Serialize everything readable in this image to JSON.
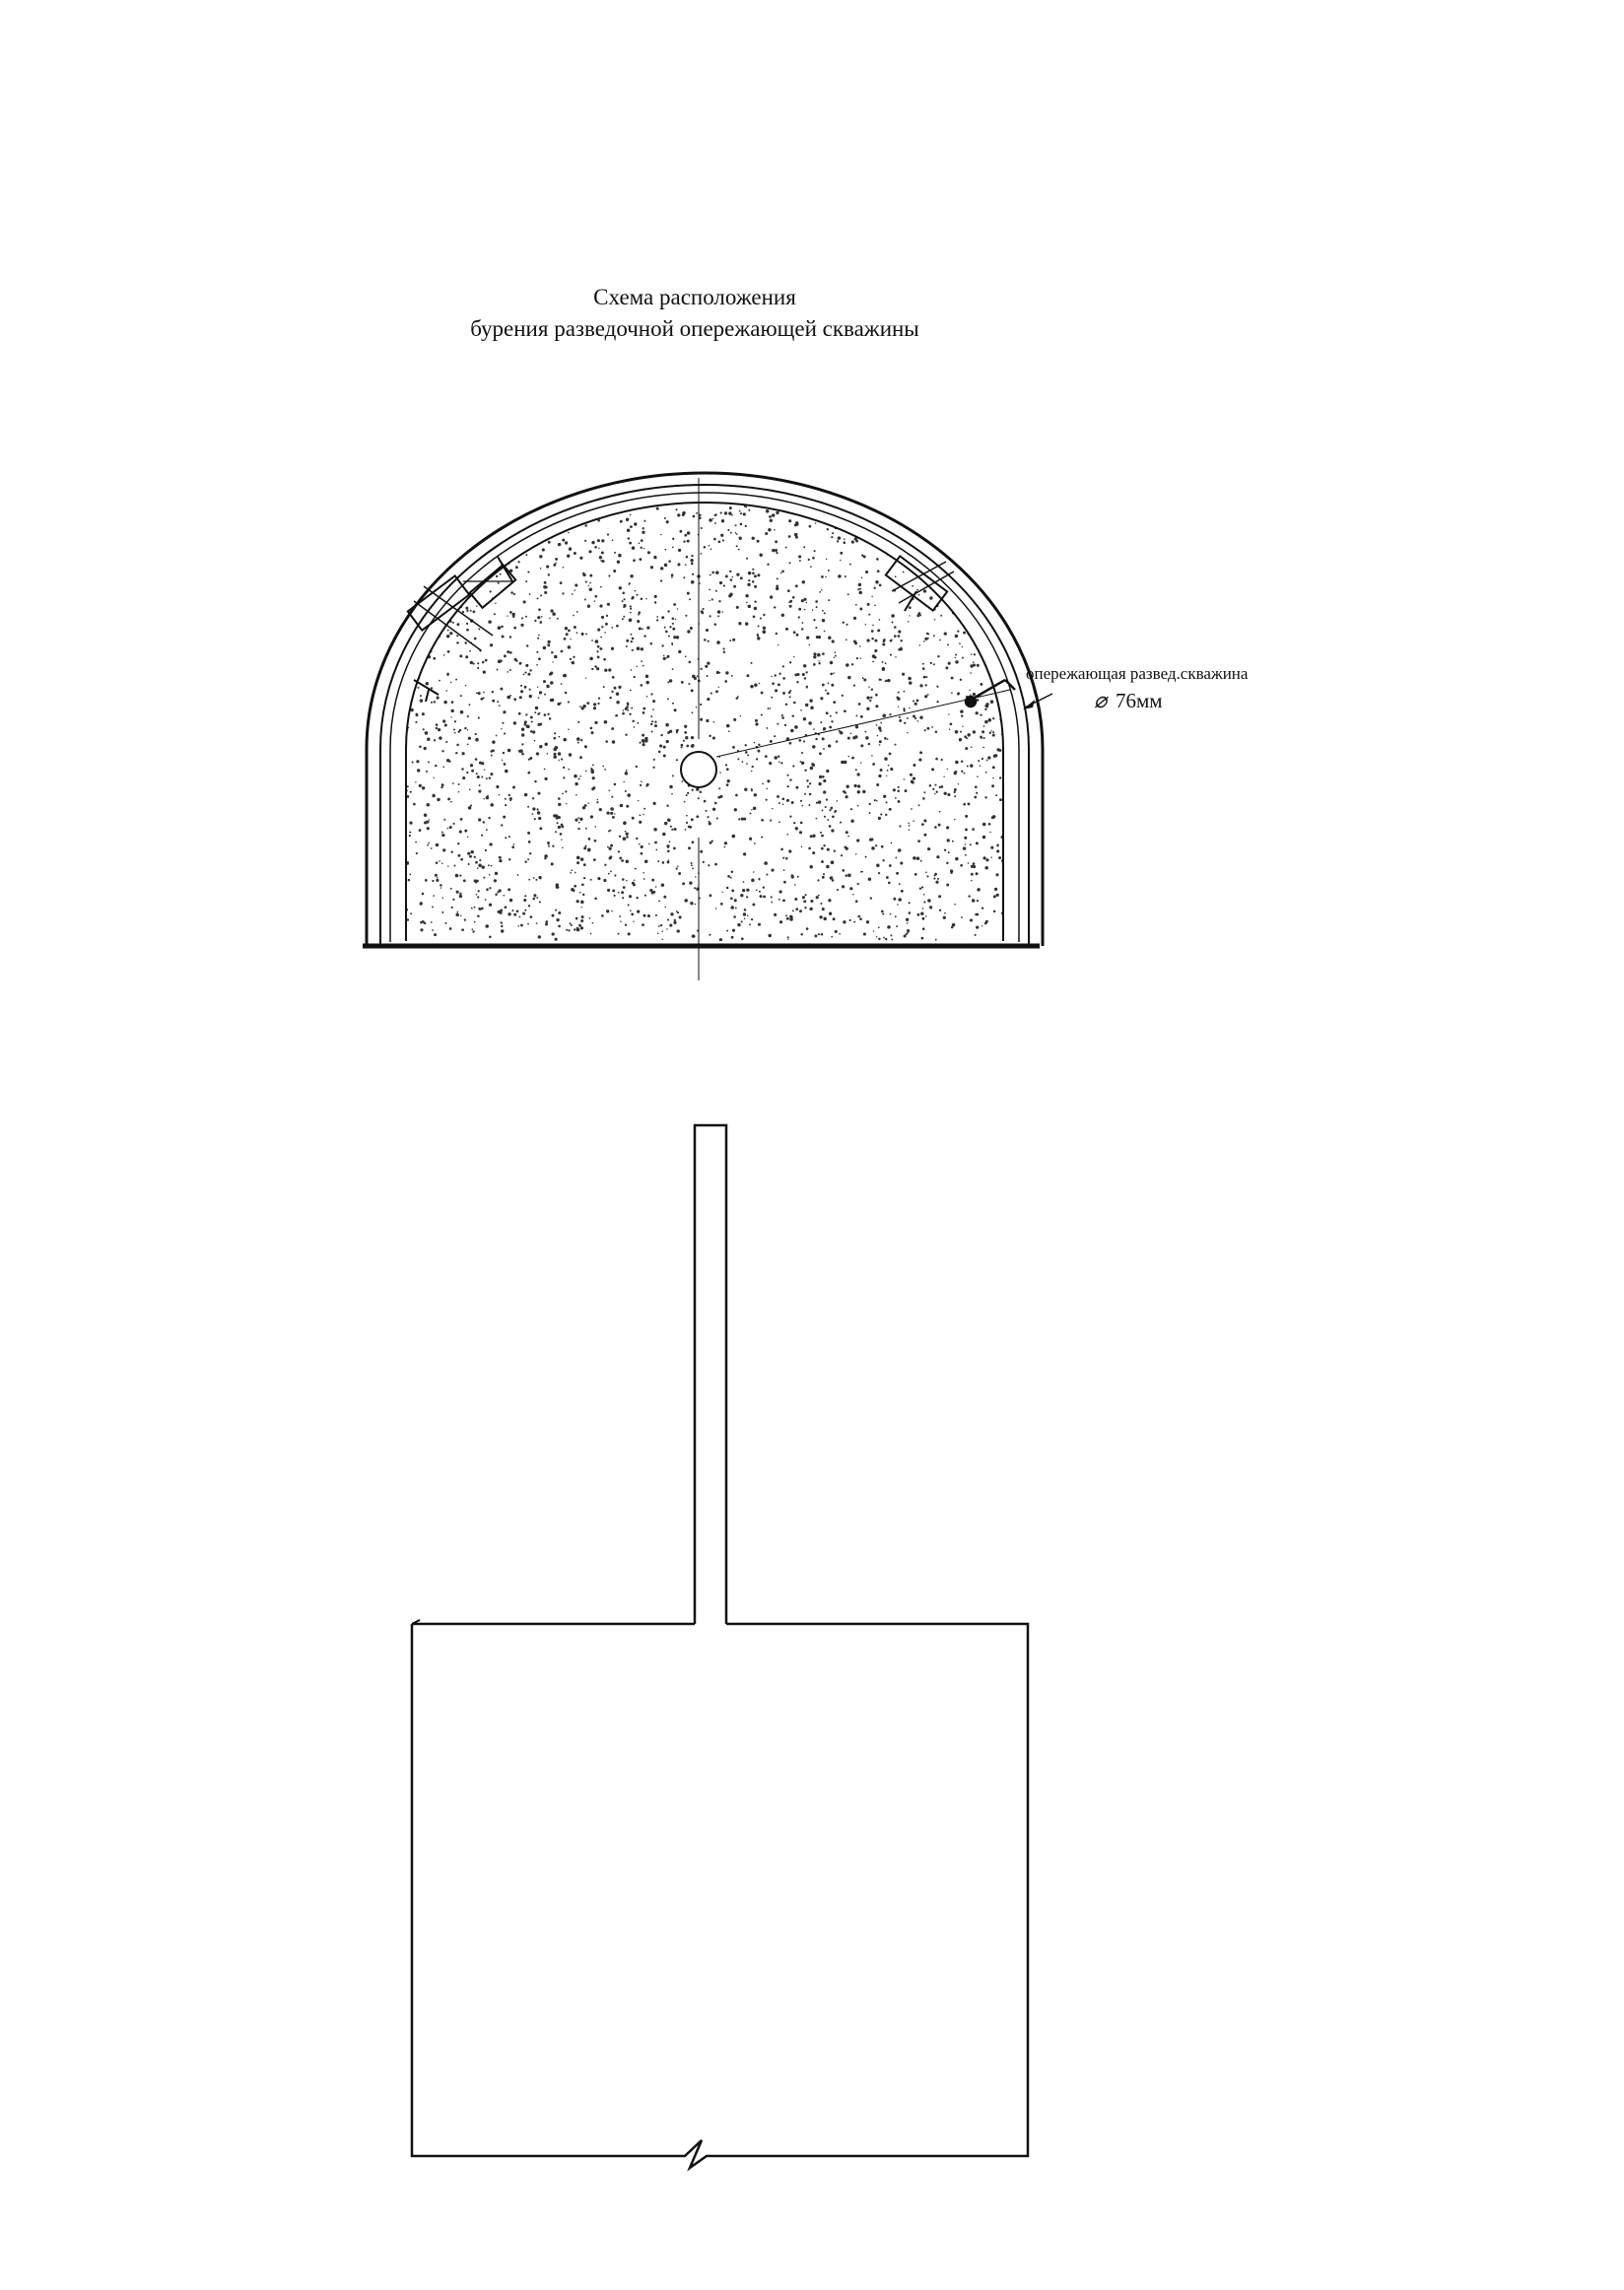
{
  "title": {
    "line1": "Схема расположения",
    "line2": "бурения разведочной опережающей скважины"
  },
  "callout": {
    "label": "опережающая развед.скважина",
    "diameter": "76мм",
    "diameter_symbol": "⌀"
  },
  "colors": {
    "ink": "#111111",
    "paper": "#ffffff"
  }
}
